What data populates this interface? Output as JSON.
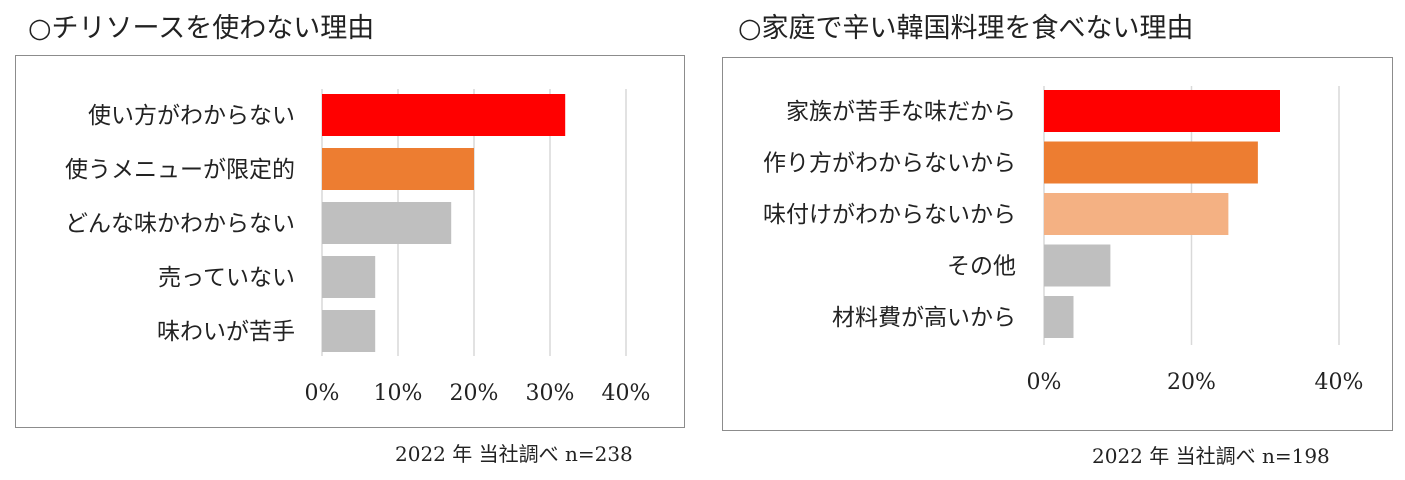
{
  "charts": [
    {
      "heading": "○チリソースを使わない理由",
      "note": "2022 年  当社調べ  n=238",
      "chart_data": {
        "type": "bar",
        "orientation": "horizontal",
        "categories": [
          "使い方がわからない",
          "使うメニューが限定的",
          "どんな味かわからない",
          "売っていない",
          "味わいが苦手"
        ],
        "values": [
          32,
          20,
          17,
          7,
          7
        ],
        "colors": [
          "#ff0000",
          "#ed7d31",
          "#bfbfbf",
          "#bfbfbf",
          "#bfbfbf"
        ],
        "xlim": [
          0,
          40
        ],
        "xticks": [
          0,
          10,
          20,
          30,
          40
        ],
        "tick_labels": [
          "0%",
          "10%",
          "20%",
          "30%",
          "40%"
        ],
        "grid": true
      }
    },
    {
      "heading": "○家庭で辛い韓国料理を食べない理由",
      "note": "2022 年  当社調べ  n=198",
      "chart_data": {
        "type": "bar",
        "orientation": "horizontal",
        "categories": [
          "家族が苦手な味だから",
          "作り方がわからないから",
          "味付けがわからないから",
          "その他",
          "材料費が高いから"
        ],
        "values": [
          32,
          29,
          25,
          9,
          4
        ],
        "colors": [
          "#ff0000",
          "#ed7d31",
          "#f4b183",
          "#bfbfbf",
          "#bfbfbf"
        ],
        "xlim": [
          0,
          40
        ],
        "xticks": [
          0,
          20,
          40
        ],
        "tick_labels": [
          "0%",
          "20%",
          "40%"
        ],
        "grid": true
      }
    }
  ]
}
